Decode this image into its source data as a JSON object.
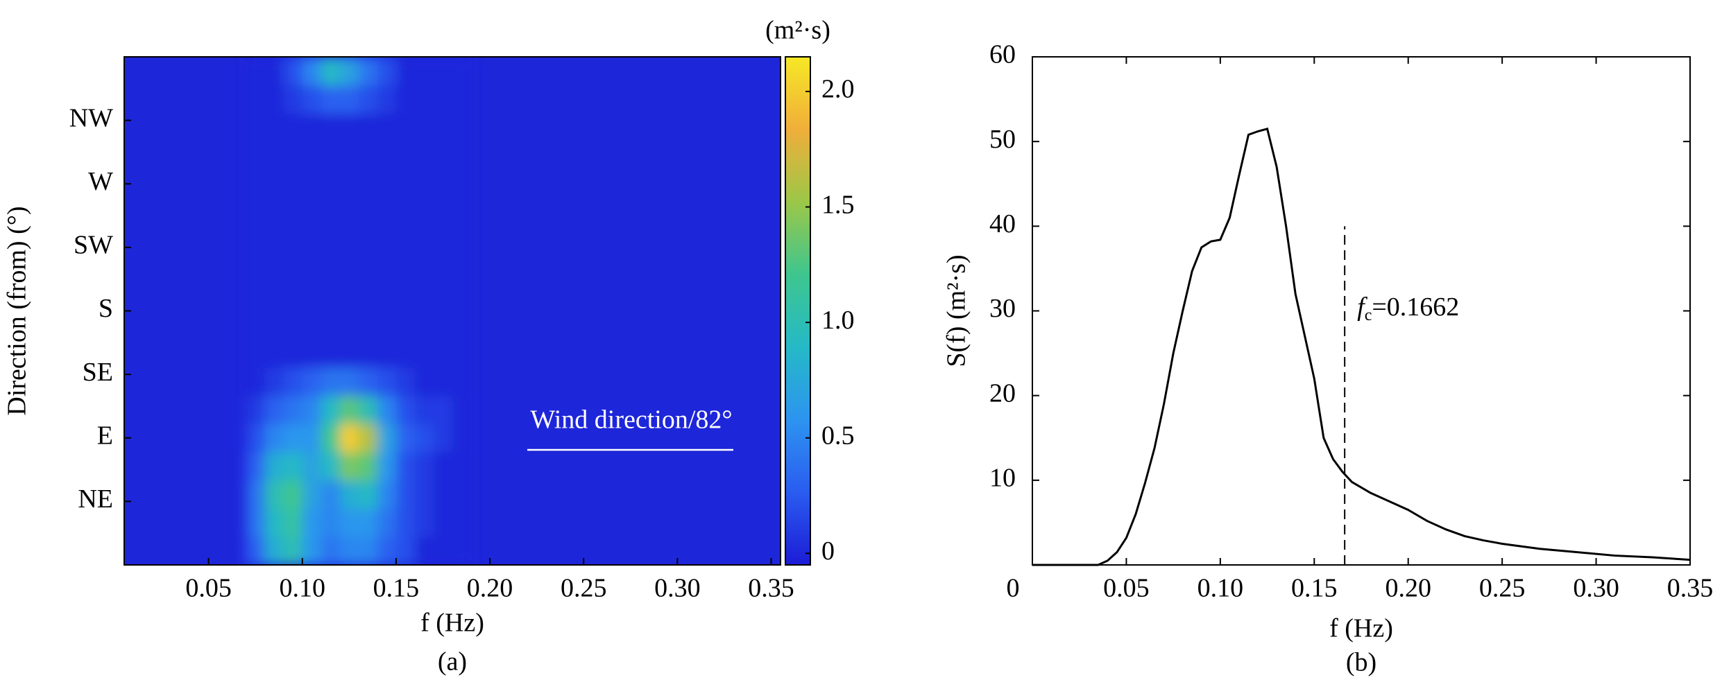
{
  "chart_data": [
    {
      "type": "heatmap",
      "caption": "(a)",
      "x_label": "f (Hz)",
      "y_label": "Direction (from) (°)",
      "xlim": [
        0.005,
        0.355
      ],
      "xticks": [
        0.05,
        {
          "value": 0.1,
          "label": "0.10"
        },
        0.15,
        {
          "value": 0.2,
          "label": "0.20"
        },
        0.25,
        {
          "value": 0.3,
          "label": "0.30"
        },
        0.35
      ],
      "ylim": [
        0,
        360
      ],
      "yticks": [
        {
          "value": 45,
          "label": "NE"
        },
        {
          "value": 90,
          "label": "E"
        },
        {
          "value": 135,
          "label": "SE"
        },
        {
          "value": 180,
          "label": "S"
        },
        {
          "value": 225,
          "label": "SW"
        },
        {
          "value": 270,
          "label": "W"
        },
        {
          "value": 315,
          "label": "NW"
        }
      ],
      "x": [
        0.075,
        0.085,
        0.095,
        0.105,
        0.115,
        0.125,
        0.135,
        0.145,
        0.155,
        0.165,
        0.175,
        0.185
      ],
      "y": [
        10,
        30,
        50,
        70,
        90,
        110,
        130,
        150,
        170,
        190,
        210,
        230,
        250,
        270,
        290,
        310,
        330,
        350
      ],
      "z": [
        [
          0.3,
          0.8,
          1.0,
          0.6,
          0.4,
          0.5,
          0.5,
          0.3,
          0.2,
          0,
          0,
          0
        ],
        [
          0.4,
          0.9,
          1.1,
          0.6,
          0.5,
          0.6,
          0.6,
          0.4,
          0.2,
          0.1,
          0,
          0
        ],
        [
          0.4,
          1.0,
          1.2,
          0.7,
          0.5,
          0.8,
          0.9,
          0.5,
          0.2,
          0.1,
          0,
          0
        ],
        [
          0.3,
          0.8,
          0.9,
          0.7,
          0.9,
          1.4,
          1.3,
          0.6,
          0.2,
          0.1,
          0,
          0
        ],
        [
          0.2,
          0.5,
          0.6,
          0.6,
          1.2,
          2.0,
          1.6,
          0.7,
          0.3,
          0.2,
          0.1,
          0
        ],
        [
          0.1,
          0.3,
          0.4,
          0.5,
          0.9,
          1.3,
          1.0,
          0.5,
          0.2,
          0.1,
          0.1,
          0
        ],
        [
          0,
          0.1,
          0.2,
          0.3,
          0.4,
          0.4,
          0.3,
          0.2,
          0.1,
          0,
          0,
          0
        ],
        [
          0,
          0,
          0,
          0,
          0,
          0,
          0,
          0,
          0,
          0,
          0,
          0
        ],
        [
          0,
          0,
          0,
          0,
          0,
          0,
          0,
          0,
          0,
          0,
          0,
          0
        ],
        [
          0,
          0,
          0,
          0,
          0,
          0,
          0,
          0,
          0,
          0,
          0,
          0
        ],
        [
          0,
          0,
          0,
          0,
          0,
          0,
          0,
          0,
          0,
          0,
          0,
          0
        ],
        [
          0,
          0,
          0,
          0,
          0,
          0,
          0,
          0,
          0,
          0,
          0,
          0
        ],
        [
          0,
          0,
          0,
          0,
          0,
          0,
          0,
          0,
          0,
          0,
          0,
          0
        ],
        [
          0,
          0,
          0,
          0,
          0,
          0,
          0,
          0,
          0,
          0,
          0,
          0
        ],
        [
          0,
          0,
          0,
          0,
          0,
          0,
          0,
          0,
          0,
          0,
          0,
          0
        ],
        [
          0,
          0,
          0,
          0,
          0,
          0,
          0,
          0,
          0,
          0,
          0,
          0
        ],
        [
          0,
          0,
          0.1,
          0.2,
          0.3,
          0.3,
          0.2,
          0.1,
          0,
          0,
          0,
          0
        ],
        [
          0,
          0,
          0.2,
          0.5,
          0.9,
          0.7,
          0.4,
          0.2,
          0,
          0,
          0,
          0
        ]
      ],
      "colormap": [
        "#1c1cd6",
        "#2a5cf0",
        "#2d94f0",
        "#25b9c6",
        "#3ec68f",
        "#9cc748",
        "#f0ae3a",
        "#f6e826"
      ],
      "colorbar": {
        "title": "(m²·s)",
        "lim": [
          -0.05,
          2.15
        ],
        "ticks": [
          0,
          0.5,
          {
            "value": 1,
            "label": "1.0"
          },
          1.5,
          {
            "value": 2,
            "label": "2.0"
          }
        ]
      },
      "annotation": "Wind direction/82°"
    },
    {
      "type": "line",
      "caption": "(b)",
      "x_label": "f (Hz)",
      "y_label": "S(f) (m²·s)",
      "xlim": [
        0,
        0.35
      ],
      "ylim": [
        0,
        60
      ],
      "xticks": [
        0,
        0.05,
        {
          "value": 0.1,
          "label": "0.10"
        },
        0.15,
        {
          "value": 0.2,
          "label": "0.20"
        },
        0.25,
        {
          "value": 0.3,
          "label": "0.30"
        },
        0.35
      ],
      "yticks": [
        10,
        20,
        30,
        40,
        50,
        60
      ],
      "x": [
        0,
        0.035,
        0.04,
        0.045,
        0.05,
        0.055,
        0.06,
        0.065,
        0.07,
        0.075,
        0.08,
        0.085,
        0.09,
        0.095,
        0.1,
        0.105,
        0.11,
        0.115,
        0.12,
        0.125,
        0.13,
        0.135,
        0.14,
        0.145,
        0.15,
        0.155,
        0.16,
        0.165,
        0.17,
        0.18,
        0.19,
        0.2,
        0.21,
        0.22,
        0.23,
        0.24,
        0.25,
        0.27,
        0.29,
        0.31,
        0.33,
        0.35
      ],
      "values": [
        0,
        0,
        0.5,
        1.5,
        3.2,
        6,
        9.7,
        13.8,
        19,
        25,
        30,
        34.7,
        37.5,
        38.2,
        38.4,
        41,
        46,
        50.8,
        51.2,
        51.5,
        47,
        40,
        32,
        27,
        22,
        15,
        12.5,
        11,
        9.8,
        8.5,
        7.5,
        6.5,
        5.2,
        4.2,
        3.4,
        2.9,
        2.5,
        1.9,
        1.5,
        1.1,
        0.9,
        0.6
      ],
      "color": "#000000",
      "cutoff": {
        "symbol": "f",
        "subscript": "c",
        "text": "=0.1662",
        "x": 0.1662,
        "ymax": 40
      }
    }
  ]
}
